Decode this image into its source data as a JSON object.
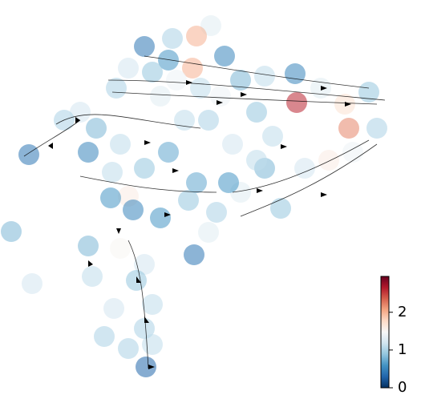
{
  "chart_data": {
    "type": "scatter",
    "x": [
      263,
      245,
      180,
      215,
      280,
      240,
      210,
      190,
      160,
      145,
      200,
      250,
      300,
      330,
      368,
      370,
      400,
      430,
      460,
      435,
      470,
      410,
      440,
      380,
      330,
      300,
      350,
      320,
      290,
      260,
      230,
      210,
      180,
      150,
      120,
      100,
      80,
      36,
      110,
      140,
      160,
      138,
      166,
      200,
      245,
      235,
      270,
      285,
      260,
      242,
      110,
      14,
      40,
      150,
      180,
      170,
      190,
      142,
      180,
      190,
      160,
      182,
      130,
      115,
      320,
      340,
      275,
      220
    ],
    "y": [
      448,
      435,
      422,
      432,
      410,
      395,
      405,
      390,
      395,
      370,
      360,
      370,
      380,
      385,
      388,
      352,
      370,
      350,
      365,
      320,
      320,
      280,
      290,
      270,
      270,
      240,
      220,
      280,
      300,
      330,
      330,
      290,
      270,
      300,
      320,
      340,
      330,
      287,
      290,
      265,
      235,
      233,
      218,
      208,
      252,
      230,
      215,
      252,
      190,
      162,
      173,
      191,
      126,
      170,
      150,
      130,
      100,
      95,
      70,
      50,
      45,
      22,
      60,
      135,
      340,
      310,
      360,
      380
    ],
    "values": [
      1.3,
      2.0,
      0.4,
      1.0,
      0.5,
      2.0,
      0.6,
      0.9,
      1.2,
      1.0,
      1.3,
      1.1,
      0.8,
      1.1,
      0.5,
      2.6,
      1.3,
      1.7,
      0.9,
      2.2,
      1.0,
      1.6,
      1.4,
      1.2,
      0.8,
      1.3,
      0.9,
      1.1,
      1.2,
      1.0,
      1.1,
      0.7,
      0.9,
      1.1,
      0.8,
      1.2,
      1.0,
      0.4,
      0.5,
      1.1,
      1.6,
      0.6,
      0.5,
      0.6,
      0.7,
      0.9,
      1.0,
      0.6,
      1.3,
      0.4,
      0.8,
      0.8,
      1.2,
      1.5,
      1.2,
      0.9,
      1.1,
      1.2,
      1.0,
      1.1,
      1.0,
      0.3,
      1.0,
      1.1,
      0.9,
      1.1,
      1.4,
      1.4
    ],
    "xlim": [
      0,
      485
    ],
    "ylim": [
      0,
      465
    ],
    "colormap": [
      "#053061",
      "#2166ac",
      "#4393c3",
      "#92c5de",
      "#d1e5f0",
      "#f7f7f7",
      "#fddbc7",
      "#f4a582",
      "#d6604d",
      "#b2182b",
      "#67001f"
    ],
    "clim": [
      0,
      2.95
    ],
    "cticks": [
      0,
      1,
      2
    ]
  }
}
